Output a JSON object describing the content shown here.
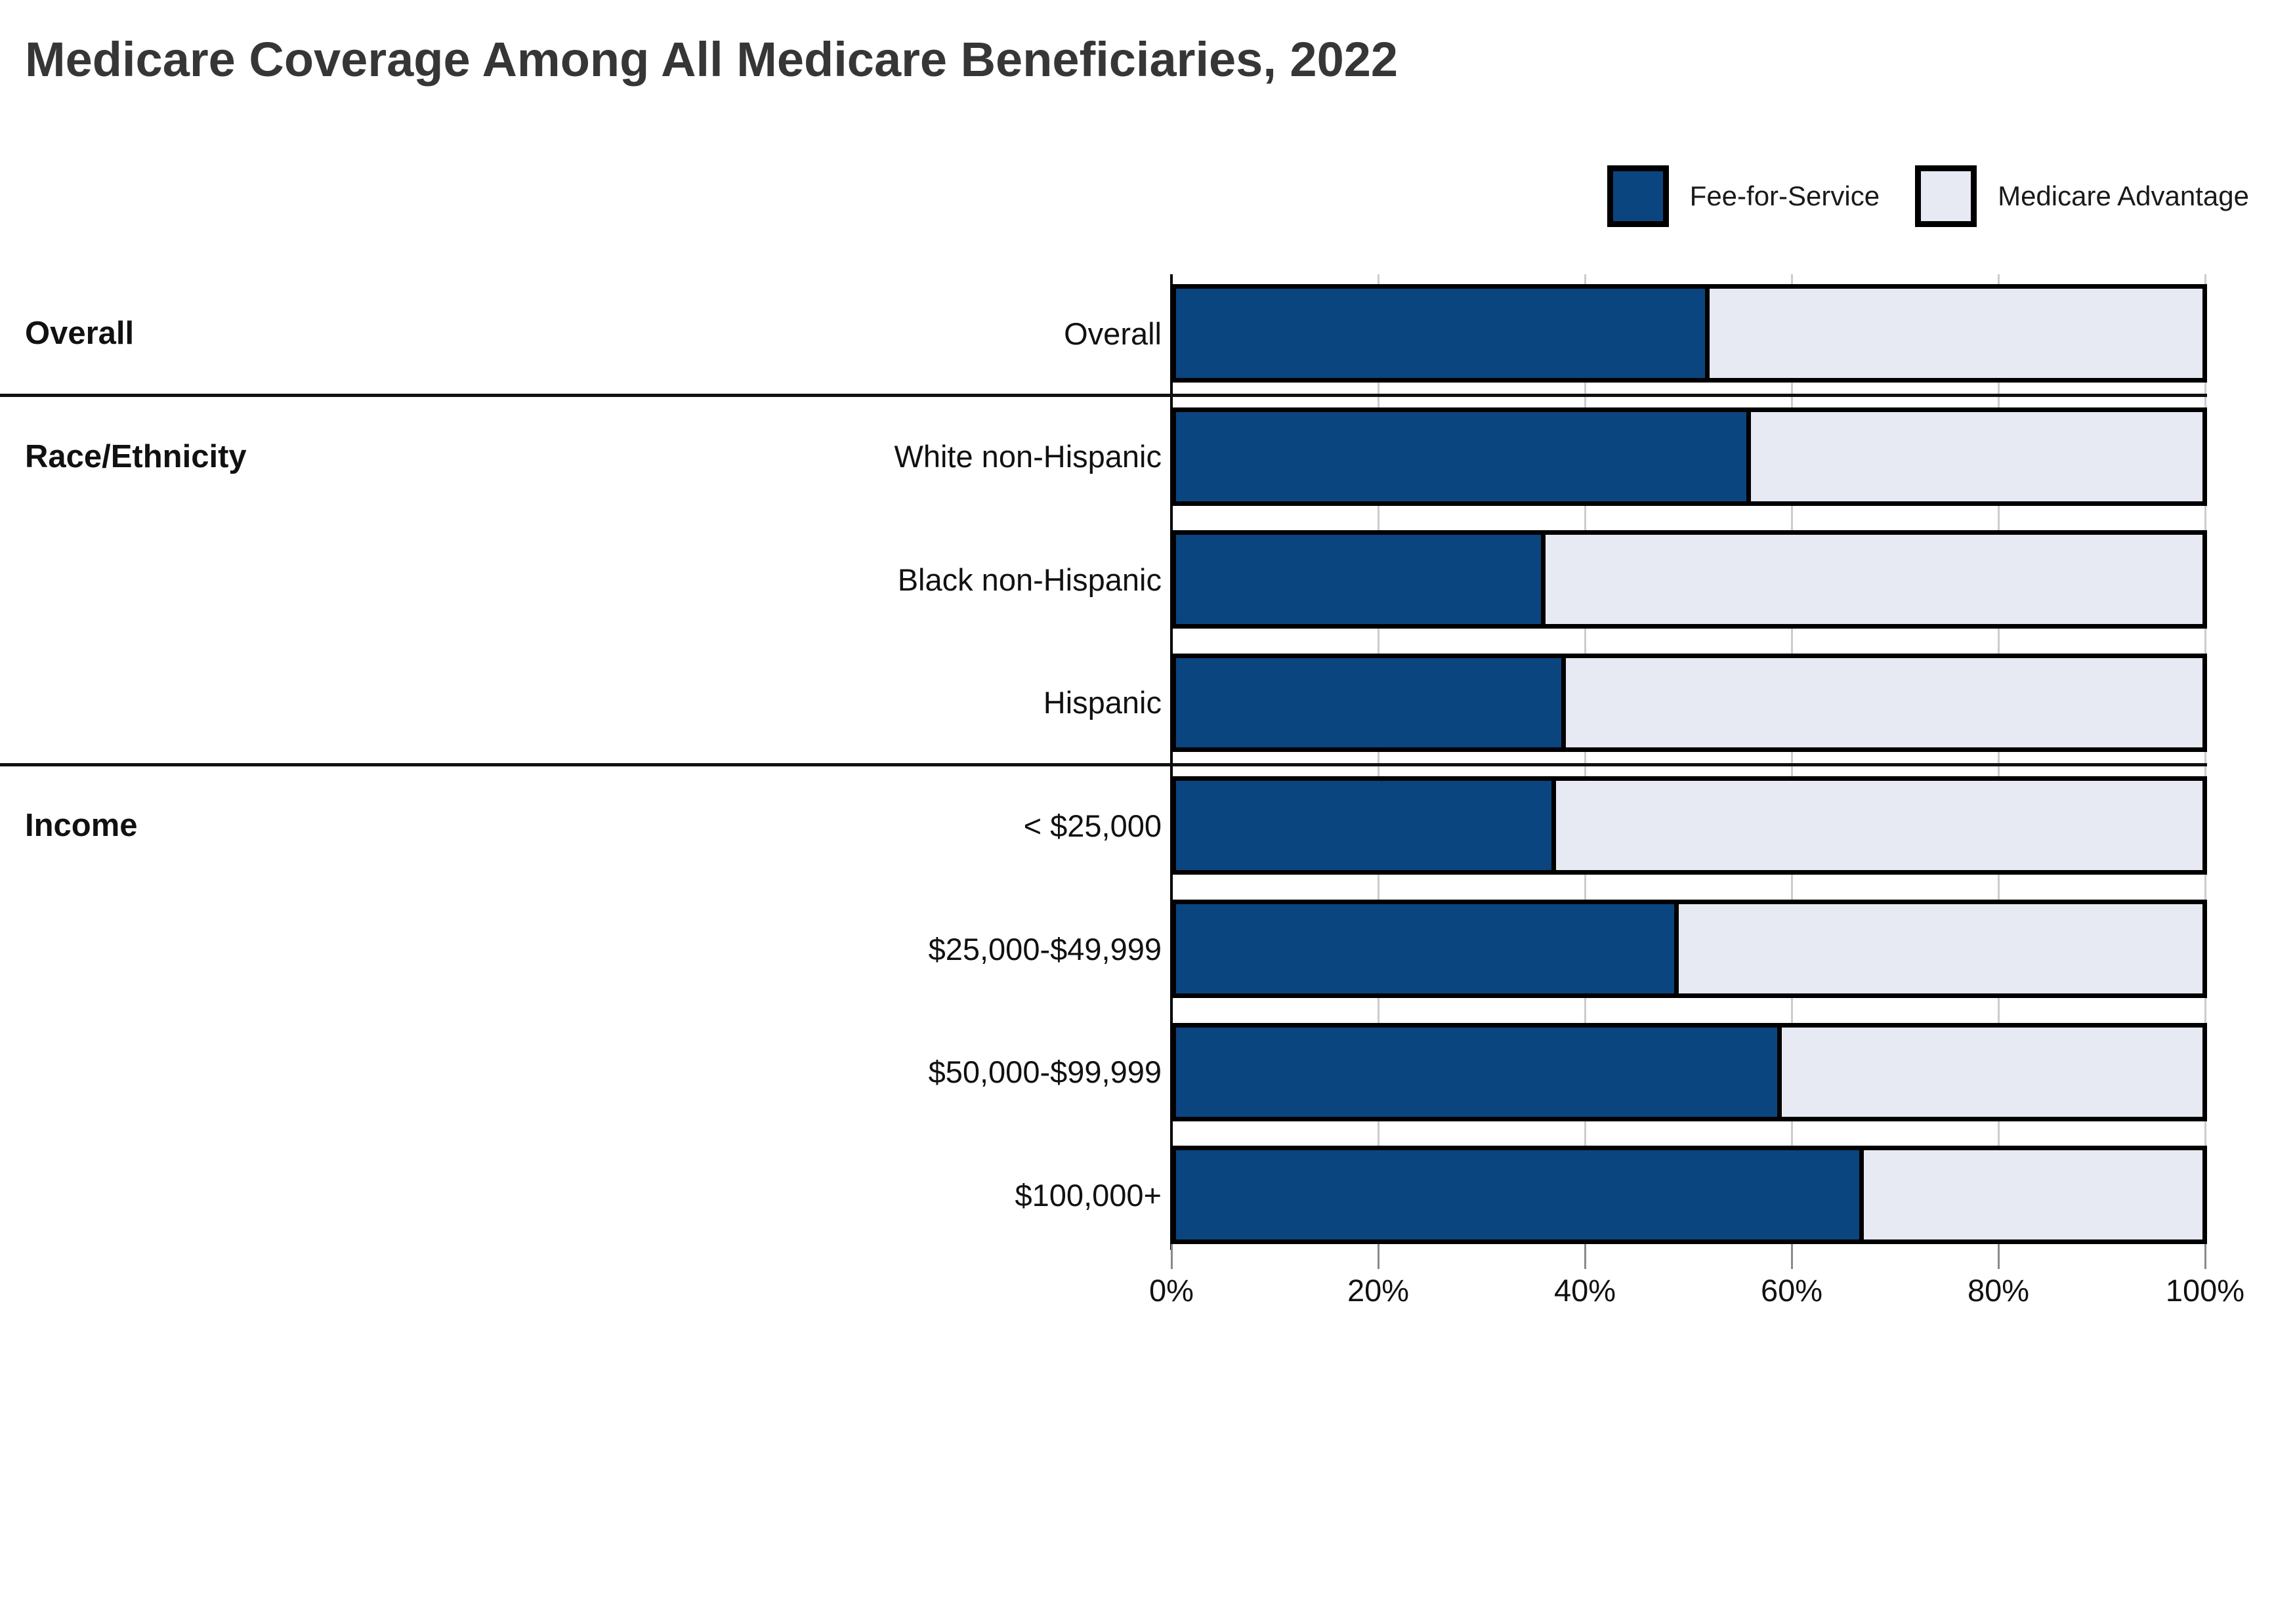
{
  "title": "Medicare Coverage Among All Medicare Beneficiaries, 2022",
  "legend": [
    {
      "label": "Fee-for-Service",
      "color": "#0B4580"
    },
    {
      "label": "Medicare Advantage",
      "color": "#E7EAF3"
    }
  ],
  "chart_data": {
    "type": "bar",
    "subtype": "horizontal-stacked-100-percent",
    "title": "Medicare Coverage Among All Medicare Beneficiaries, 2022",
    "series_names": [
      "Fee-for-Service",
      "Medicare Advantage"
    ],
    "colors": {
      "fee_for_service": "#0B4580",
      "medicare_advantage": "#E7EAF3",
      "bar_border": "#000000",
      "gridline": "#cccccc",
      "axis": "#000000"
    },
    "xlim": [
      0,
      100
    ],
    "x_tick_values": [
      0,
      20,
      40,
      60,
      80,
      100
    ],
    "x_tick_labels": [
      "0%",
      "20%",
      "40%",
      "60%",
      "80%",
      "100%"
    ],
    "grid": "vertical",
    "legend_position": "top-right",
    "sections": [
      {
        "section": "Overall",
        "rows": [
          {
            "label": "Overall",
            "fee_for_service": 52,
            "medicare_advantage": 48
          }
        ]
      },
      {
        "section": "Race/Ethnicity",
        "rows": [
          {
            "label": "White non-Hispanic",
            "fee_for_service": 56,
            "medicare_advantage": 44
          },
          {
            "label": "Black non-Hispanic",
            "fee_for_service": 36,
            "medicare_advantage": 64
          },
          {
            "label": "Hispanic",
            "fee_for_service": 38,
            "medicare_advantage": 62
          }
        ]
      },
      {
        "section": "Income",
        "rows": [
          {
            "label": "< $25,000",
            "fee_for_service": 37,
            "medicare_advantage": 63
          },
          {
            "label": "$25,000-$49,999",
            "fee_for_service": 49,
            "medicare_advantage": 51
          },
          {
            "label": "$50,000-$99,999",
            "fee_for_service": 59,
            "medicare_advantage": 41
          },
          {
            "label": "$100,000+",
            "fee_for_service": 67,
            "medicare_advantage": 33
          }
        ]
      }
    ]
  }
}
